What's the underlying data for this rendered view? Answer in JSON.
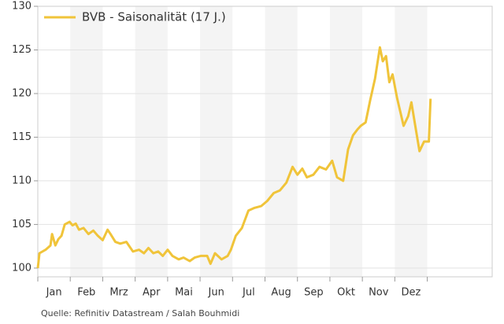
{
  "chart_data": {
    "type": "line",
    "legend": "upper left",
    "source": "Quelle: Refinitiv Datastream / Salah Bouhmidi",
    "xlim": [
      0,
      14
    ],
    "xticks": [
      {
        "value": 0.5,
        "label": "Jan"
      },
      {
        "value": 1.5,
        "label": "Feb"
      },
      {
        "value": 2.5,
        "label": "Mrz"
      },
      {
        "value": 3.5,
        "label": "Apr"
      },
      {
        "value": 4.5,
        "label": "Mai"
      },
      {
        "value": 5.5,
        "label": "Jun"
      },
      {
        "value": 6.5,
        "label": "Jul"
      },
      {
        "value": 7.5,
        "label": "Aug"
      },
      {
        "value": 8.5,
        "label": "Sep"
      },
      {
        "value": 9.5,
        "label": "Okt"
      },
      {
        "value": 10.5,
        "label": "Nov"
      },
      {
        "value": 11.5,
        "label": "Dez"
      }
    ],
    "ylim": [
      99,
      130
    ],
    "yticks": [
      100,
      105,
      110,
      115,
      120,
      125,
      130
    ],
    "grid": true,
    "x": [
      0,
      0.05,
      0.24,
      0.39,
      0.44,
      0.54,
      0.63,
      0.73,
      0.83,
      0.98,
      1.07,
      1.17,
      1.27,
      1.41,
      1.56,
      1.71,
      1.85,
      2.0,
      2.15,
      2.24,
      2.39,
      2.54,
      2.73,
      2.93,
      3.12,
      3.27,
      3.41,
      3.56,
      3.71,
      3.85,
      4.0,
      4.15,
      4.34,
      4.49,
      4.68,
      4.83,
      5.02,
      5.22,
      5.32,
      5.46,
      5.66,
      5.85,
      5.95,
      6.1,
      6.29,
      6.49,
      6.68,
      6.88,
      7.07,
      7.27,
      7.46,
      7.66,
      7.85,
      8.0,
      8.15,
      8.29,
      8.49,
      8.68,
      8.88,
      9.07,
      9.22,
      9.41,
      9.56,
      9.71,
      9.85,
      9.95,
      10.1,
      10.24,
      10.39,
      10.54,
      10.63,
      10.73,
      10.83,
      10.93,
      11.07,
      11.27,
      11.41,
      11.51,
      11.66,
      11.76,
      11.9,
      12.05,
      12.1
    ],
    "series": [
      {
        "name": "BVB - Saisonalität (17 J.)",
        "color": "#f0c43a",
        "values": [
          100.0,
          101.7,
          102.1,
          102.6,
          103.9,
          102.6,
          103.3,
          103.7,
          105.0,
          105.3,
          104.9,
          105.1,
          104.4,
          104.6,
          103.9,
          104.3,
          103.7,
          103.2,
          104.4,
          103.9,
          103.0,
          102.8,
          103.0,
          101.9,
          102.1,
          101.7,
          102.3,
          101.7,
          101.9,
          101.4,
          102.1,
          101.4,
          101.0,
          101.2,
          100.8,
          101.2,
          101.4,
          101.4,
          100.5,
          101.7,
          101.0,
          101.4,
          102.1,
          103.7,
          104.6,
          106.6,
          106.9,
          107.1,
          107.7,
          108.6,
          108.9,
          109.8,
          111.6,
          110.7,
          111.4,
          110.4,
          110.7,
          111.6,
          111.3,
          112.3,
          110.4,
          110.0,
          113.6,
          115.2,
          115.9,
          116.3,
          116.7,
          119.2,
          121.7,
          125.3,
          123.7,
          124.3,
          121.3,
          122.2,
          119.5,
          116.3,
          117.4,
          119.0,
          115.6,
          113.4,
          114.5,
          114.5,
          119.4
        ]
      }
    ]
  }
}
